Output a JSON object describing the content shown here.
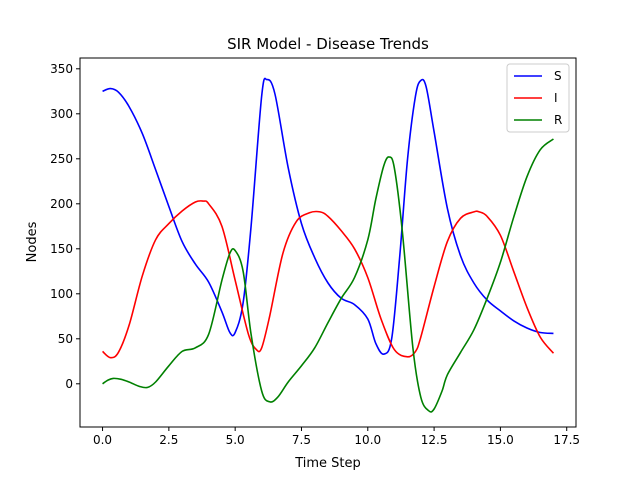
{
  "chart_data": {
    "type": "line",
    "title": "SIR Model - Disease Trends",
    "xlabel": "Time Step",
    "ylabel": "Nodes",
    "xlim": [
      -0.85,
      17.85
    ],
    "ylim": [
      -48,
      362
    ],
    "xticks": [
      0.0,
      2.5,
      5.0,
      7.5,
      10.0,
      12.5,
      15.0,
      17.5
    ],
    "xtick_labels": [
      "0.0",
      "2.5",
      "5.0",
      "7.5",
      "10.0",
      "12.5",
      "15.0",
      "17.5"
    ],
    "yticks": [
      0,
      50,
      100,
      150,
      200,
      250,
      300,
      350
    ],
    "ytick_labels": [
      "0",
      "50",
      "100",
      "150",
      "200",
      "250",
      "300",
      "350"
    ],
    "grid": false,
    "legend_position": "top-right",
    "series": [
      {
        "name": "S",
        "color": "#0000ff",
        "x": [
          0,
          0.3,
          0.6,
          1.0,
          1.5,
          2.0,
          2.5,
          3.0,
          3.5,
          4.0,
          4.5,
          4.8,
          5.0,
          5.3,
          5.6,
          6.0,
          6.2,
          6.5,
          7.0,
          7.5,
          8.0,
          8.5,
          9.0,
          9.5,
          10.0,
          10.3,
          10.6,
          10.9,
          11.2,
          11.5,
          11.8,
          12.0,
          12.2,
          12.5,
          13.0,
          13.5,
          14.0,
          14.5,
          15.0,
          15.5,
          16.0,
          16.5,
          17.0
        ],
        "y": [
          325,
          328,
          324,
          308,
          278,
          238,
          197,
          158,
          133,
          113,
          80,
          57,
          57,
          90,
          175,
          320,
          338,
          322,
          240,
          178,
          140,
          112,
          95,
          88,
          72,
          45,
          33,
          50,
          140,
          250,
          320,
          337,
          330,
          280,
          195,
          142,
          112,
          93,
          81,
          70,
          62,
          57,
          56
        ]
      },
      {
        "name": "I",
        "color": "#ff0000",
        "x": [
          0,
          0.3,
          0.6,
          1.0,
          1.5,
          2.0,
          2.5,
          3.0,
          3.5,
          3.8,
          4.0,
          4.5,
          5.0,
          5.5,
          5.8,
          6.0,
          6.3,
          6.8,
          7.3,
          7.8,
          8.2,
          8.5,
          9.0,
          9.5,
          10.0,
          10.5,
          11.0,
          11.5,
          11.8,
          12.0,
          12.5,
          13.0,
          13.5,
          14.0,
          14.2,
          14.5,
          15.0,
          15.5,
          16.0,
          16.5,
          17.0
        ],
        "y": [
          36,
          29,
          35,
          65,
          120,
          160,
          178,
          192,
          202,
          203,
          200,
          175,
          115,
          55,
          38,
          40,
          75,
          145,
          180,
          190,
          191,
          186,
          170,
          150,
          118,
          72,
          38,
          30,
          36,
          52,
          108,
          158,
          184,
          191,
          191,
          186,
          165,
          125,
          85,
          52,
          34
        ]
      },
      {
        "name": "R",
        "color": "#008000",
        "x": [
          0,
          0.2,
          0.4,
          0.7,
          1.0,
          1.4,
          1.7,
          2.0,
          2.5,
          3.0,
          3.5,
          4.0,
          4.5,
          4.8,
          5.0,
          5.3,
          5.6,
          6.0,
          6.3,
          6.6,
          7.0,
          7.5,
          8.0,
          8.5,
          9.0,
          9.5,
          10.0,
          10.3,
          10.6,
          10.8,
          11.0,
          11.3,
          11.7,
          12.0,
          12.3,
          12.5,
          12.8,
          13.0,
          13.5,
          14.0,
          14.5,
          15.0,
          15.5,
          16.0,
          16.5,
          17.0
        ],
        "y": [
          0,
          4,
          6,
          5,
          2,
          -3,
          -4,
          2,
          20,
          36,
          40,
          55,
          115,
          145,
          148,
          125,
          55,
          -8,
          -20,
          -15,
          2,
          20,
          40,
          68,
          95,
          118,
          160,
          205,
          242,
          252,
          240,
          170,
          40,
          -15,
          -30,
          -28,
          -8,
          10,
          35,
          60,
          95,
          135,
          185,
          230,
          260,
          272
        ]
      }
    ]
  }
}
